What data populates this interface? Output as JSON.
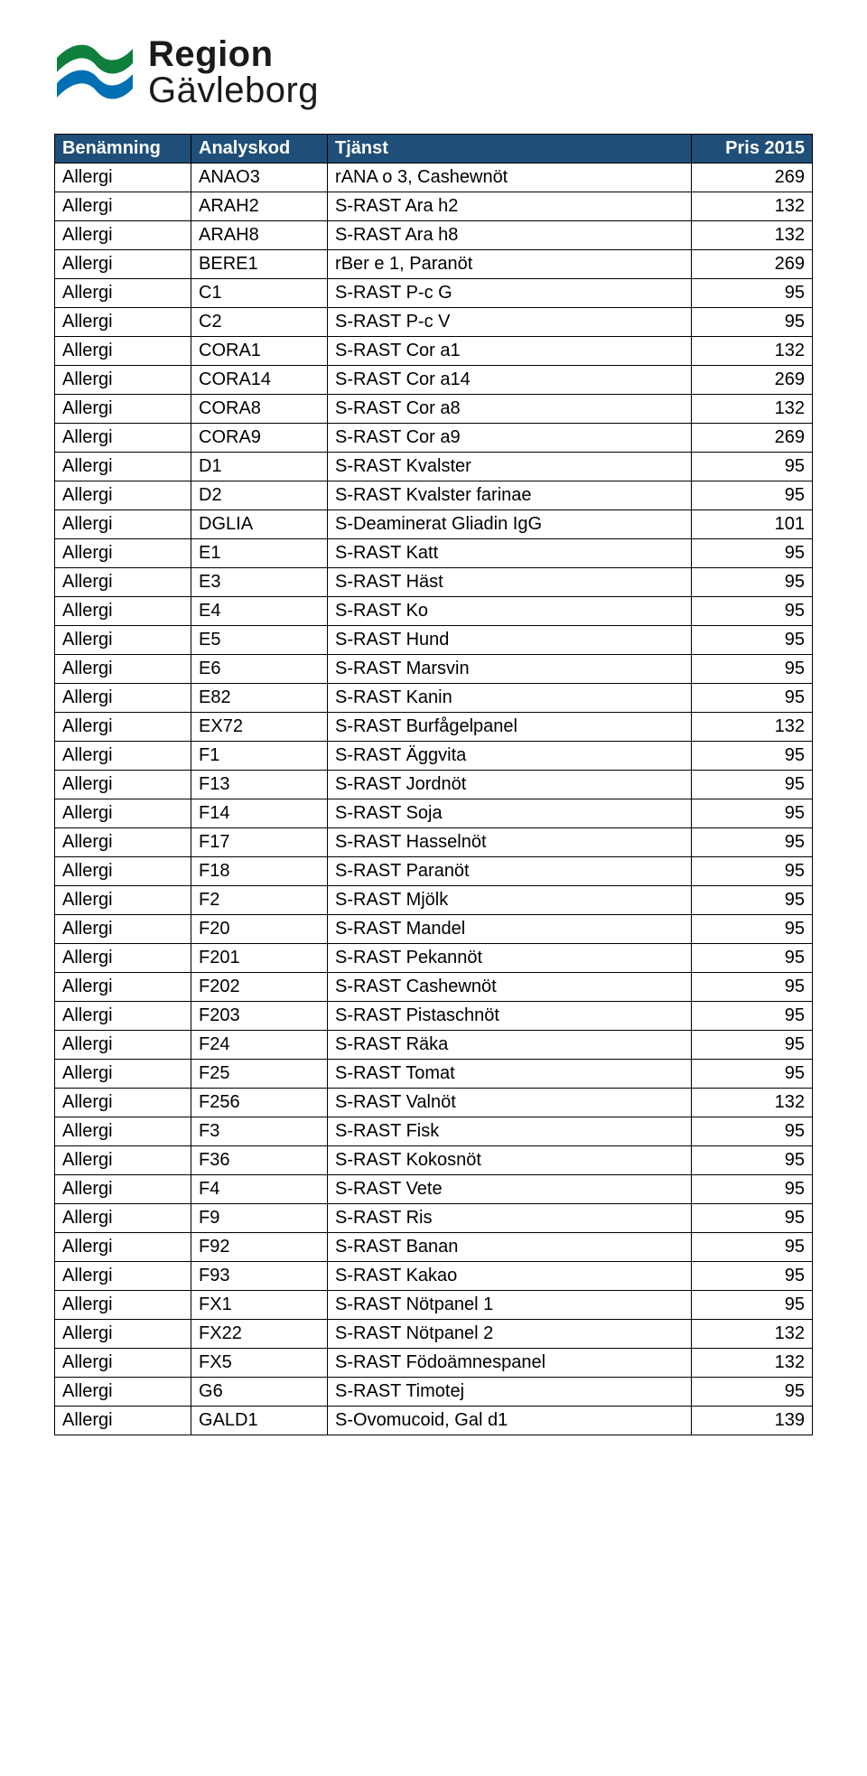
{
  "logo": {
    "line1": "Region",
    "line2": "Gävleborg",
    "mark_color_top": "#0e7f3c",
    "mark_color_bottom": "#006fb3"
  },
  "table": {
    "header_bg": "#1f4e79",
    "header_fg": "#ffffff",
    "border_color": "#000000",
    "columns": [
      {
        "key": "benamning",
        "label": "Benämning",
        "width_pct": 18,
        "align": "left"
      },
      {
        "key": "analyskod",
        "label": "Analyskod",
        "width_pct": 18,
        "align": "left"
      },
      {
        "key": "tjanst",
        "label": "Tjänst",
        "width_pct": 48,
        "align": "left"
      },
      {
        "key": "pris",
        "label": "Pris 2015",
        "width_pct": 16,
        "align": "right"
      }
    ],
    "rows": [
      [
        "Allergi",
        "ANAO3",
        "rANA o 3, Cashewnöt",
        "269"
      ],
      [
        "Allergi",
        "ARAH2",
        "S-RAST Ara h2",
        "132"
      ],
      [
        "Allergi",
        "ARAH8",
        "S-RAST Ara h8",
        "132"
      ],
      [
        "Allergi",
        "BERE1",
        "rBer e 1, Paranöt",
        "269"
      ],
      [
        "Allergi",
        "C1",
        "S-RAST P-c G",
        "95"
      ],
      [
        "Allergi",
        "C2",
        "S-RAST P-c V",
        "95"
      ],
      [
        "Allergi",
        "CORA1",
        "S-RAST Cor a1",
        "132"
      ],
      [
        "Allergi",
        "CORA14",
        "S-RAST Cor a14",
        "269"
      ],
      [
        "Allergi",
        "CORA8",
        "S-RAST Cor a8",
        "132"
      ],
      [
        "Allergi",
        "CORA9",
        "S-RAST Cor a9",
        "269"
      ],
      [
        "Allergi",
        "D1",
        "S-RAST Kvalster",
        "95"
      ],
      [
        "Allergi",
        "D2",
        "S-RAST Kvalster farinae",
        "95"
      ],
      [
        "Allergi",
        "DGLIA",
        "S-Deaminerat Gliadin IgG",
        "101"
      ],
      [
        "Allergi",
        "E1",
        "S-RAST Katt",
        "95"
      ],
      [
        "Allergi",
        "E3",
        "S-RAST Häst",
        "95"
      ],
      [
        "Allergi",
        "E4",
        "S-RAST Ko",
        "95"
      ],
      [
        "Allergi",
        "E5",
        "S-RAST Hund",
        "95"
      ],
      [
        "Allergi",
        "E6",
        "S-RAST Marsvin",
        "95"
      ],
      [
        "Allergi",
        "E82",
        "S-RAST Kanin",
        "95"
      ],
      [
        "Allergi",
        "EX72",
        "S-RAST Burfågelpanel",
        "132"
      ],
      [
        "Allergi",
        "F1",
        "S-RAST Äggvita",
        "95"
      ],
      [
        "Allergi",
        "F13",
        "S-RAST Jordnöt",
        "95"
      ],
      [
        "Allergi",
        "F14",
        "S-RAST Soja",
        "95"
      ],
      [
        "Allergi",
        "F17",
        "S-RAST Hasselnöt",
        "95"
      ],
      [
        "Allergi",
        "F18",
        "S-RAST Paranöt",
        "95"
      ],
      [
        "Allergi",
        "F2",
        "S-RAST Mjölk",
        "95"
      ],
      [
        "Allergi",
        "F20",
        "S-RAST Mandel",
        "95"
      ],
      [
        "Allergi",
        "F201",
        "S-RAST Pekannöt",
        "95"
      ],
      [
        "Allergi",
        "F202",
        "S-RAST Cashewnöt",
        "95"
      ],
      [
        "Allergi",
        "F203",
        "S-RAST Pistaschnöt",
        "95"
      ],
      [
        "Allergi",
        "F24",
        "S-RAST Räka",
        "95"
      ],
      [
        "Allergi",
        "F25",
        "S-RAST Tomat",
        "95"
      ],
      [
        "Allergi",
        "F256",
        "S-RAST Valnöt",
        "132"
      ],
      [
        "Allergi",
        "F3",
        "S-RAST Fisk",
        "95"
      ],
      [
        "Allergi",
        "F36",
        "S-RAST Kokosnöt",
        "95"
      ],
      [
        "Allergi",
        "F4",
        "S-RAST Vete",
        "95"
      ],
      [
        "Allergi",
        "F9",
        "S-RAST Ris",
        "95"
      ],
      [
        "Allergi",
        "F92",
        "S-RAST Banan",
        "95"
      ],
      [
        "Allergi",
        "F93",
        "S-RAST Kakao",
        "95"
      ],
      [
        "Allergi",
        "FX1",
        "S-RAST Nötpanel 1",
        "95"
      ],
      [
        "Allergi",
        "FX22",
        "S-RAST Nötpanel 2",
        "132"
      ],
      [
        "Allergi",
        "FX5",
        "S-RAST Födoämnespanel",
        "132"
      ],
      [
        "Allergi",
        "G6",
        "S-RAST Timotej",
        "95"
      ],
      [
        "Allergi",
        "GALD1",
        "S-Ovomucoid, Gal d1",
        "139"
      ]
    ]
  }
}
